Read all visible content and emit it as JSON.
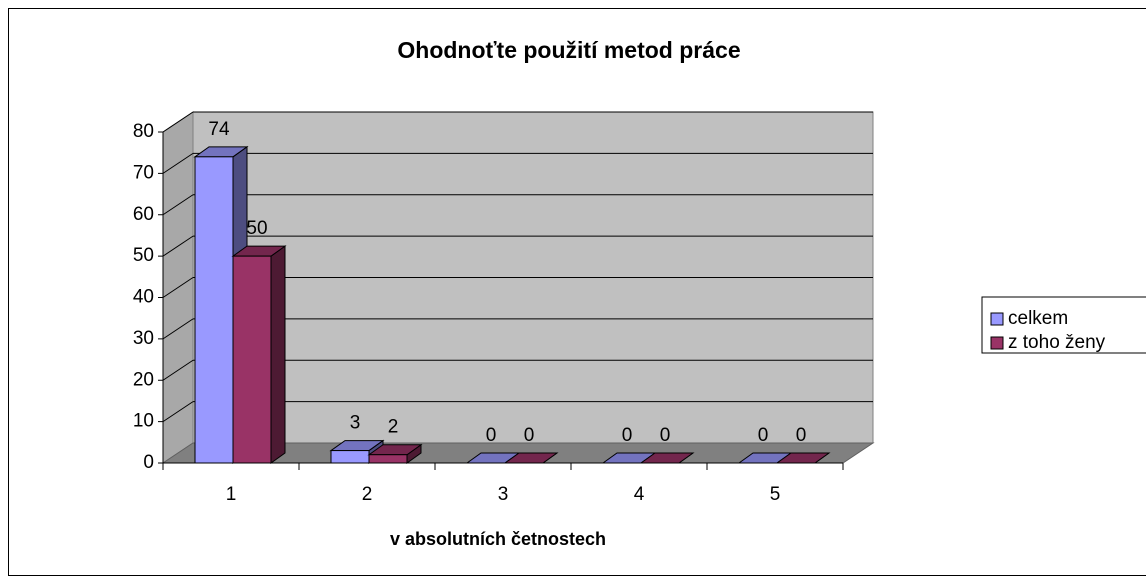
{
  "chart_data": {
    "type": "bar3d",
    "title": "Ohodnoťte použití metod práce",
    "x_label": "v absolutních četnostech",
    "categories": [
      "1",
      "2",
      "3",
      "4",
      "5"
    ],
    "series": [
      {
        "name": "celkem",
        "color": "#9999ff",
        "values": [
          74,
          3,
          0,
          0,
          0
        ]
      },
      {
        "name": "z toho ženy",
        "color": "#993366",
        "values": [
          50,
          2,
          0,
          0,
          0
        ]
      }
    ],
    "ylim": [
      0,
      80
    ],
    "yticks": [
      0,
      10,
      20,
      30,
      40,
      50,
      60,
      70,
      80
    ],
    "grid": true,
    "legend": "right"
  }
}
